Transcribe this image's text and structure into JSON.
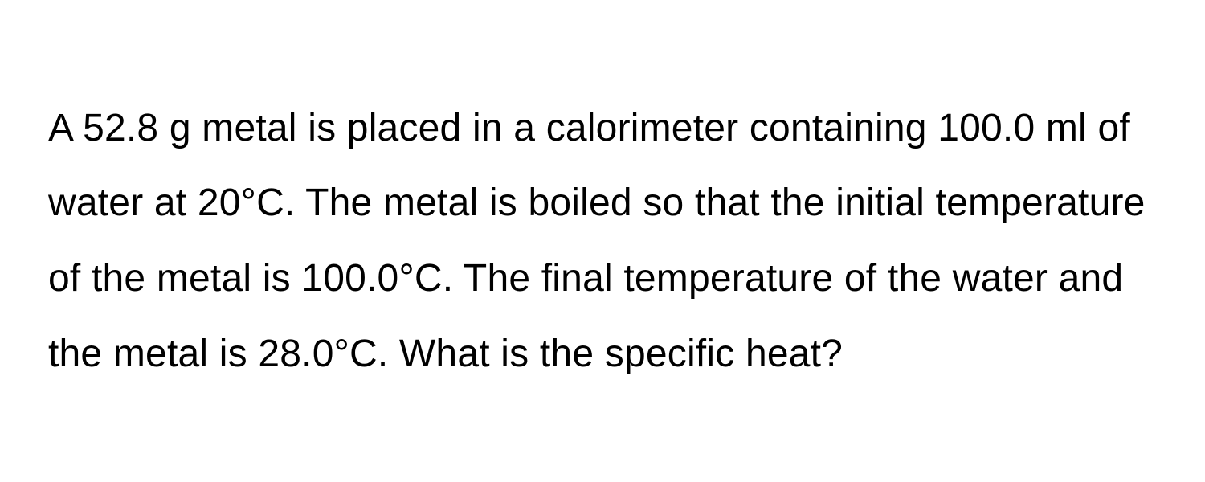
{
  "problem": {
    "text": "A 52.8 g metal is placed in a calorimeter containing 100.0 ml of water at 20°C. The metal is boiled so that the initial temperature of the metal is 100.0°C. The final temperature of the water and the metal is 28.0°C. What is the specific heat?",
    "font_size": 48,
    "font_color": "#000000",
    "background_color": "#ffffff",
    "line_height": 1.95,
    "font_weight": 400
  }
}
